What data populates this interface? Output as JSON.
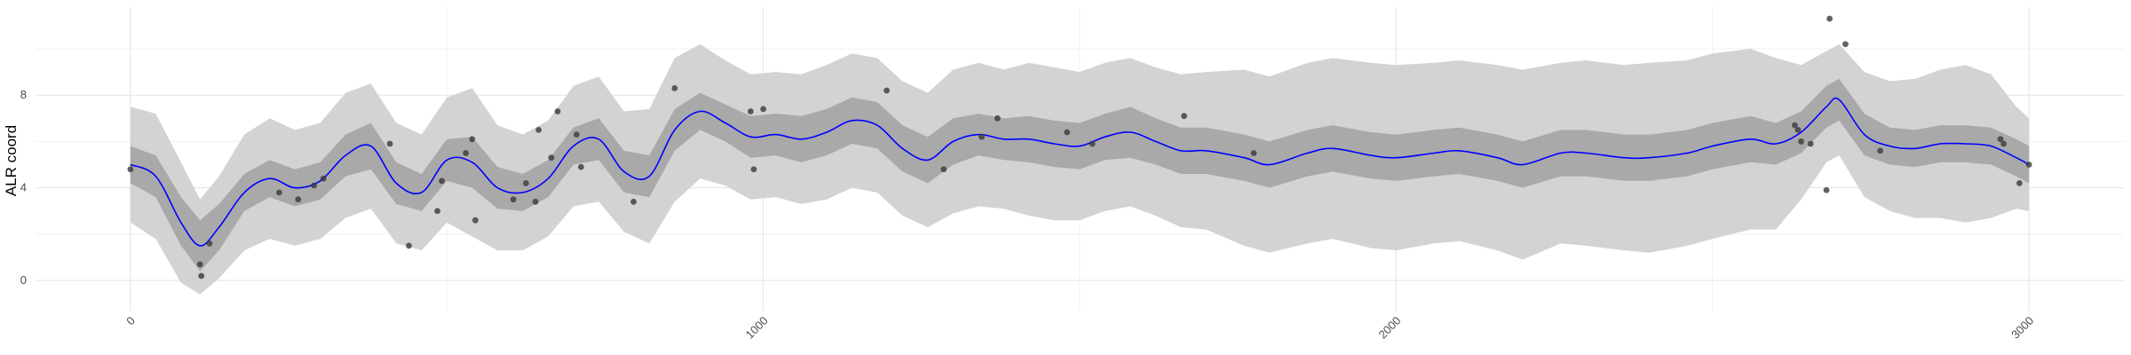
{
  "chart_data": {
    "type": "line",
    "title": "",
    "xlabel": "",
    "ylabel": "ALR coord",
    "xlim": [
      -150,
      3150
    ],
    "ylim": [
      -1.3,
      11.8
    ],
    "x_ticks": [
      0,
      1000,
      2000,
      3000
    ],
    "x_tick_labels": [
      "0",
      "1000",
      "2000",
      "3000"
    ],
    "y_ticks": [
      0,
      4,
      8
    ],
    "y_tick_labels": [
      "0",
      "4",
      "8"
    ],
    "grid": true,
    "legend": "none",
    "colors": {
      "line": "#0000ff",
      "inner_band": "#a9a9a9",
      "outer_band": "#d3d3d3",
      "points": "#3a3a3a",
      "grid_major": "#e3e3e3",
      "grid_minor": "#f0f0f0"
    },
    "series": [
      {
        "type": "line",
        "x": [
          0,
          40,
          80,
          110,
          140,
          180,
          220,
          260,
          300,
          340,
          380,
          420,
          460,
          500,
          540,
          580,
          620,
          660,
          700,
          740,
          780,
          820,
          860,
          900,
          940,
          980,
          1020,
          1060,
          1100,
          1140,
          1180,
          1220,
          1260,
          1300,
          1340,
          1380,
          1420,
          1460,
          1500,
          1540,
          1580,
          1620,
          1660,
          1700,
          1760,
          1800,
          1860,
          1900,
          1960,
          2000,
          2060,
          2100,
          2160,
          2200,
          2260,
          2300,
          2360,
          2400,
          2460,
          2500,
          2560,
          2600,
          2640,
          2680,
          2700,
          2740,
          2780,
          2820,
          2860,
          2900,
          2940,
          2980,
          3000
        ],
        "y": [
          5.0,
          4.5,
          2.5,
          1.5,
          2.3,
          3.8,
          4.4,
          4.0,
          4.3,
          5.4,
          5.8,
          4.2,
          3.8,
          5.2,
          5.1,
          4.0,
          3.8,
          4.4,
          5.8,
          6.1,
          4.7,
          4.5,
          6.5,
          7.3,
          6.8,
          6.2,
          6.3,
          6.1,
          6.4,
          6.9,
          6.7,
          5.7,
          5.2,
          6.0,
          6.3,
          6.1,
          6.1,
          5.9,
          5.8,
          6.2,
          6.4,
          6.0,
          5.6,
          5.6,
          5.3,
          5.0,
          5.5,
          5.7,
          5.4,
          5.3,
          5.5,
          5.6,
          5.3,
          5.0,
          5.5,
          5.5,
          5.3,
          5.3,
          5.5,
          5.8,
          6.1,
          5.9,
          6.4,
          7.5,
          7.8,
          6.3,
          5.8,
          5.7,
          5.9,
          5.9,
          5.8,
          5.3,
          5.0
        ]
      },
      {
        "type": "band",
        "name": "",
        "x": [
          0,
          40,
          80,
          110,
          140,
          180,
          220,
          260,
          300,
          340,
          380,
          420,
          460,
          500,
          540,
          580,
          620,
          660,
          700,
          740,
          780,
          820,
          860,
          900,
          940,
          980,
          1020,
          1060,
          1100,
          1140,
          1180,
          1220,
          1260,
          1300,
          1340,
          1380,
          1420,
          1460,
          1500,
          1540,
          1580,
          1620,
          1660,
          1700,
          1760,
          1800,
          1860,
          1900,
          1960,
          2000,
          2060,
          2100,
          2160,
          2200,
          2260,
          2300,
          2360,
          2400,
          2460,
          2500,
          2560,
          2600,
          2640,
          2680,
          2700,
          2740,
          2780,
          2820,
          2860,
          2900,
          2940,
          2980,
          3000
        ],
        "upper": [
          5.8,
          5.4,
          3.6,
          2.6,
          3.3,
          4.6,
          5.2,
          4.8,
          5.1,
          6.3,
          6.8,
          5.1,
          4.6,
          6.1,
          6.2,
          4.9,
          4.6,
          5.2,
          6.6,
          7.0,
          5.6,
          5.4,
          7.4,
          8.1,
          7.6,
          7.1,
          7.2,
          7.1,
          7.4,
          7.9,
          7.7,
          6.7,
          6.2,
          7.0,
          7.2,
          7.0,
          7.1,
          6.9,
          6.8,
          7.2,
          7.5,
          7.0,
          6.6,
          6.6,
          6.3,
          6.0,
          6.5,
          6.7,
          6.4,
          6.3,
          6.5,
          6.6,
          6.3,
          6.0,
          6.5,
          6.5,
          6.3,
          6.3,
          6.5,
          6.8,
          7.1,
          6.8,
          7.3,
          8.4,
          8.7,
          7.2,
          6.6,
          6.5,
          6.7,
          6.7,
          6.6,
          6.1,
          5.8
        ],
        "lower": [
          4.2,
          3.6,
          1.5,
          0.4,
          1.3,
          3.0,
          3.6,
          3.2,
          3.5,
          4.5,
          4.8,
          3.3,
          3.0,
          4.3,
          4.0,
          3.1,
          3.0,
          3.6,
          5.0,
          5.2,
          3.8,
          3.6,
          5.6,
          6.5,
          6.0,
          5.3,
          5.4,
          5.1,
          5.4,
          5.9,
          5.7,
          4.7,
          4.2,
          5.0,
          5.4,
          5.2,
          5.1,
          4.9,
          4.8,
          5.2,
          5.3,
          5.0,
          4.6,
          4.6,
          4.3,
          4.0,
          4.5,
          4.7,
          4.4,
          4.3,
          4.5,
          4.6,
          4.3,
          4.0,
          4.5,
          4.5,
          4.3,
          4.3,
          4.5,
          4.8,
          5.1,
          5.0,
          5.5,
          6.6,
          6.9,
          5.4,
          5.0,
          4.9,
          5.1,
          5.1,
          5.0,
          4.5,
          4.2
        ]
      },
      {
        "type": "band",
        "name": "",
        "x": [
          0,
          40,
          80,
          110,
          140,
          180,
          220,
          260,
          300,
          340,
          380,
          420,
          460,
          500,
          540,
          580,
          620,
          660,
          700,
          740,
          780,
          820,
          860,
          900,
          940,
          980,
          1020,
          1060,
          1100,
          1140,
          1180,
          1220,
          1260,
          1300,
          1340,
          1380,
          1420,
          1460,
          1500,
          1540,
          1580,
          1620,
          1660,
          1700,
          1760,
          1800,
          1860,
          1900,
          1960,
          2000,
          2060,
          2100,
          2160,
          2200,
          2260,
          2300,
          2360,
          2400,
          2460,
          2500,
          2560,
          2600,
          2640,
          2680,
          2700,
          2740,
          2780,
          2820,
          2860,
          2900,
          2940,
          2980,
          3000
        ],
        "upper": [
          7.5,
          7.2,
          5.1,
          3.5,
          4.5,
          6.3,
          7.0,
          6.5,
          6.8,
          8.1,
          8.5,
          6.8,
          6.3,
          7.9,
          8.3,
          6.7,
          6.3,
          6.9,
          8.4,
          8.8,
          7.3,
          7.4,
          9.6,
          10.2,
          9.5,
          8.9,
          9.0,
          8.9,
          9.3,
          9.8,
          9.6,
          8.6,
          8.1,
          9.1,
          9.4,
          9.1,
          9.4,
          9.2,
          9.0,
          9.4,
          9.6,
          9.2,
          8.9,
          9.0,
          9.1,
          8.8,
          9.4,
          9.6,
          9.4,
          9.3,
          9.4,
          9.5,
          9.3,
          9.1,
          9.4,
          9.5,
          9.3,
          9.4,
          9.5,
          9.8,
          10.0,
          9.6,
          9.3,
          9.9,
          10.2,
          9.0,
          8.6,
          8.7,
          9.1,
          9.3,
          8.9,
          7.5,
          7.0
        ],
        "lower": [
          2.5,
          1.8,
          -0.1,
          -0.6,
          0.1,
          1.3,
          1.8,
          1.5,
          1.8,
          2.7,
          3.1,
          1.6,
          1.3,
          2.5,
          1.9,
          1.3,
          1.3,
          1.9,
          3.2,
          3.4,
          2.1,
          1.6,
          3.4,
          4.4,
          4.1,
          3.5,
          3.6,
          3.3,
          3.5,
          4.0,
          3.8,
          2.8,
          2.3,
          2.9,
          3.2,
          3.1,
          2.8,
          2.6,
          2.6,
          3.0,
          3.2,
          2.8,
          2.3,
          2.2,
          1.5,
          1.2,
          1.6,
          1.8,
          1.4,
          1.3,
          1.6,
          1.7,
          1.3,
          0.9,
          1.6,
          1.5,
          1.3,
          1.2,
          1.5,
          1.8,
          2.2,
          2.2,
          3.5,
          5.1,
          5.4,
          3.6,
          3.0,
          2.7,
          2.7,
          2.5,
          2.7,
          3.1,
          3.0
        ]
      },
      {
        "type": "scatter",
        "x": [
          0,
          110,
          112,
          125,
          235,
          265,
          290,
          305,
          410,
          440,
          485,
          492,
          530,
          540,
          545,
          605,
          625,
          640,
          645,
          665,
          675,
          705,
          712,
          795,
          860,
          980,
          1000,
          985,
          1195,
          1285,
          1345,
          1370,
          1480,
          1520,
          1665,
          1775,
          2630,
          2635,
          2640,
          2655,
          2680,
          2685,
          2710,
          2765,
          2955,
          2960,
          2985,
          3000
        ],
        "y": [
          4.8,
          0.7,
          0.2,
          1.6,
          3.8,
          3.5,
          4.1,
          4.4,
          5.9,
          1.5,
          3.0,
          4.3,
          5.5,
          6.1,
          2.6,
          3.5,
          4.2,
          3.4,
          6.5,
          5.3,
          7.3,
          6.3,
          4.9,
          3.4,
          8.3,
          7.3,
          7.4,
          4.8,
          8.2,
          4.8,
          6.2,
          7.0,
          6.4,
          5.9,
          7.1,
          5.5,
          6.7,
          6.5,
          6.0,
          5.9,
          3.9,
          11.3,
          10.2,
          5.6,
          6.1,
          5.9,
          4.2,
          5.0
        ]
      }
    ]
  }
}
